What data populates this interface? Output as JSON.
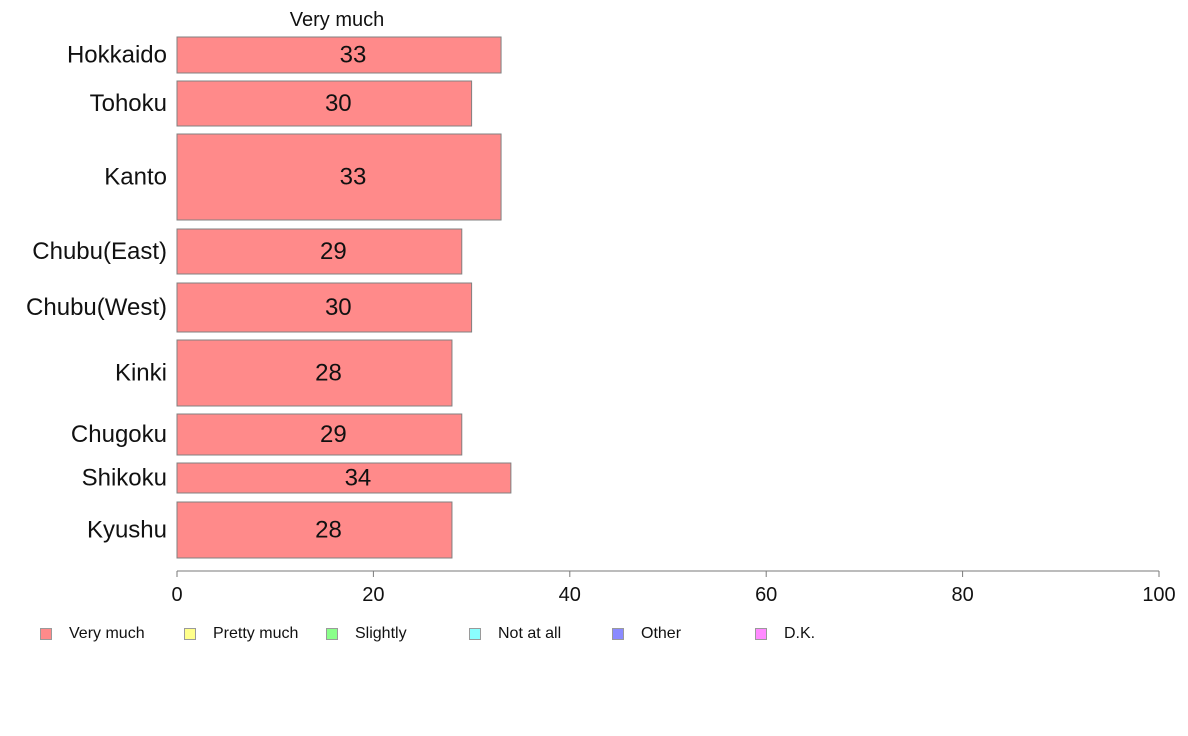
{
  "chart_data": {
    "type": "bar",
    "orientation": "horizontal",
    "stacked": true,
    "column_header": "Very much",
    "categories": [
      "Hokkaido",
      "Tohoku",
      "Kanto",
      "Chubu(East)",
      "Chubu(West)",
      "Kinki",
      "Chugoku",
      "Shikoku",
      "Kyushu"
    ],
    "series": [
      {
        "name": "Very much",
        "color": "#ff8a8a",
        "values": [
          33,
          30,
          33,
          29,
          30,
          28,
          29,
          34,
          28
        ],
        "value_labels": [
          "33",
          "30",
          "33",
          "29",
          "30",
          "28",
          "29",
          "34",
          "28"
        ]
      }
    ],
    "xlim": [
      0,
      100
    ],
    "xticks": [
      "0",
      "20",
      "40",
      "60",
      "80",
      "100"
    ],
    "grid": false,
    "legend_position": "bottom"
  },
  "legend": {
    "items": [
      {
        "label": "Very much",
        "color": "#ff8a8a"
      },
      {
        "label": "Pretty much",
        "color": "#ffff8a"
      },
      {
        "label": "Slightly",
        "color": "#8aff8a"
      },
      {
        "label": "Not at all",
        "color": "#8affff"
      },
      {
        "label": "Other",
        "color": "#8a8aff"
      },
      {
        "label": "D.K.",
        "color": "#ff8aff"
      }
    ]
  }
}
